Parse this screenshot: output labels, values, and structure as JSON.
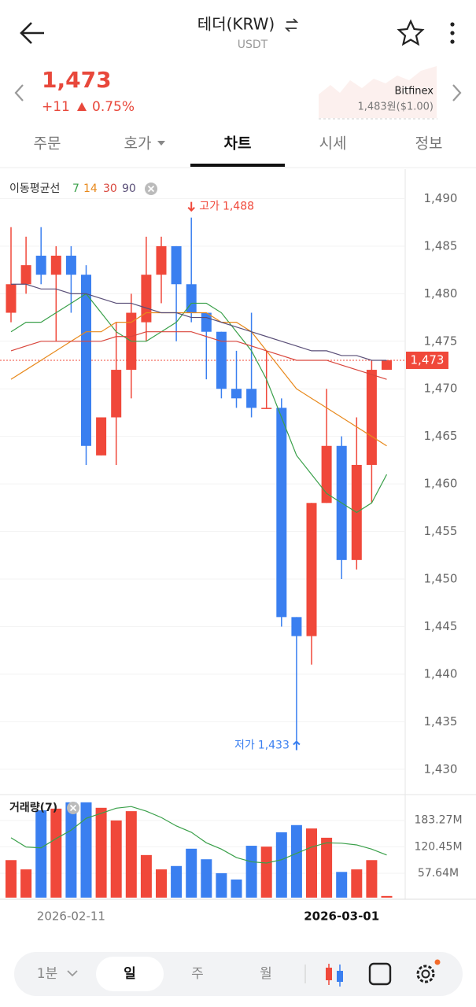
{
  "header": {
    "title": "테더(KRW)",
    "subtitle": "USDT"
  },
  "price": {
    "last": "1,473",
    "change": "+11",
    "change_pct": "0.75%"
  },
  "reference": {
    "exchange": "Bitfinex",
    "price": "1,483원($1.00)"
  },
  "tabs": [
    "주문",
    "호가",
    "차트",
    "시세",
    "정보"
  ],
  "active_tab": 2,
  "chart_data": {
    "type": "candlestick",
    "ma_legend": "이동평균선",
    "categories": [
      null,
      null,
      null,
      null,
      "2026-02-11",
      null,
      null,
      null,
      null,
      null,
      null,
      null,
      null,
      null,
      null,
      null,
      null,
      null,
      null,
      null,
      null,
      null,
      "2026-03-01",
      null,
      null,
      null
    ],
    "open": [
      1478,
      1481,
      1484,
      1482,
      1484,
      1482,
      1463,
      1467,
      1472,
      1477,
      1482,
      1485,
      1481,
      1478,
      1476,
      1470,
      1470,
      1468,
      1468,
      1446,
      1444,
      1458,
      1464,
      1452,
      1462,
      1472
    ],
    "high": [
      1487,
      1486,
      1487,
      1485,
      1485,
      1483,
      1467,
      1477,
      1480,
      1486,
      1486,
      1485,
      1488,
      1478,
      1476,
      1474,
      1478,
      1474,
      1469,
      1446,
      1458,
      1470,
      1465,
      1467,
      1473,
      1473
    ],
    "low": [
      1477,
      1480,
      1481,
      1475,
      1478,
      1462,
      1463,
      1462,
      1469,
      1475,
      1479,
      1475,
      1477,
      1471,
      1469,
      1468,
      1467,
      1468,
      1445,
      1433,
      1441,
      1458,
      1450,
      1451,
      1458,
      1472
    ],
    "close": [
      1481,
      1483,
      1482,
      1484,
      1482,
      1464,
      1467,
      1472,
      1478,
      1482,
      1485,
      1481,
      1478,
      1476,
      1470,
      1469,
      1468,
      1468,
      1446,
      1444,
      1458,
      1464,
      1452,
      1462,
      1472,
      1473
    ],
    "up_color": "#f0483a",
    "down_color": "#3a7ff0",
    "series": [
      {
        "name": "7",
        "color": "#3aa04a",
        "values": [
          1476,
          1477,
          1477,
          1478,
          1479,
          1480,
          1478,
          1476,
          1475,
          1475,
          1476,
          1477,
          1479,
          1479,
          1478,
          1476,
          1474,
          1471,
          1467,
          1463,
          1461,
          1459,
          1458,
          1457,
          1458,
          1461
        ]
      },
      {
        "name": "14",
        "color": "#e8891c",
        "values": [
          1471,
          1472,
          1473,
          1474,
          1475,
          1476,
          1476,
          1477,
          1477,
          1478,
          1478,
          1478,
          1478,
          1478,
          1477,
          1477,
          1476,
          1474,
          1472,
          1470,
          1469,
          1468,
          1467,
          1466,
          1465,
          1464
        ]
      },
      {
        "name": "30",
        "color": "#d9463c",
        "values": [
          1474,
          1474.5,
          1475,
          1475,
          1475,
          1475,
          1475,
          1475.5,
          1475.5,
          1476,
          1476,
          1476,
          1476,
          1475.5,
          1475,
          1475,
          1474.5,
          1474,
          1473.5,
          1473,
          1473,
          1473,
          1472.5,
          1472,
          1471.5,
          1471
        ]
      },
      {
        "name": "90",
        "color": "#5a4f78",
        "values": [
          1481,
          1481,
          1480.5,
          1480.5,
          1480,
          1480,
          1479.5,
          1479,
          1479,
          1478.5,
          1478,
          1478,
          1477.5,
          1477.5,
          1477,
          1476.5,
          1476,
          1475.5,
          1475,
          1474.5,
          1474,
          1474,
          1473.5,
          1473.5,
          1473,
          1473
        ]
      }
    ],
    "ylim": [
      1427.5,
      1493.1
    ],
    "yticks": [
      {
        "value": 1490,
        "label": "1,490"
      },
      {
        "value": 1485,
        "label": "1,485"
      },
      {
        "value": 1480,
        "label": "1,480"
      },
      {
        "value": 1475,
        "label": "1,475"
      },
      {
        "value": 1470,
        "label": "1,470"
      },
      {
        "value": 1465,
        "label": "1,465"
      },
      {
        "value": 1460,
        "label": "1,460"
      },
      {
        "value": 1455,
        "label": "1,455"
      },
      {
        "value": 1450,
        "label": "1,450"
      },
      {
        "value": 1445,
        "label": "1,445"
      },
      {
        "value": 1440,
        "label": "1,440"
      },
      {
        "value": 1435,
        "label": "1,435"
      },
      {
        "value": 1430,
        "label": "1,430"
      }
    ],
    "grid": true,
    "last_price": {
      "value": 1473,
      "label": "1,473"
    },
    "high_mark": {
      "text": "고가",
      "value": 1488,
      "label": "1,488"
    },
    "low_mark": {
      "text": "저가",
      "value": 1433,
      "label": "1,433"
    },
    "volume": {
      "legend": "거래량(7)",
      "values": [
        89,
        67,
        207,
        211,
        226,
        226,
        213,
        183,
        205,
        101,
        67,
        75,
        116,
        91,
        58,
        43,
        123,
        121,
        155,
        172,
        164,
        142,
        61,
        67,
        89,
        4
      ],
      "ma": {
        "color": "#3aa04a",
        "values": [
          142,
          120,
          118,
          140,
          160,
          188,
          200,
          212,
          216,
          205,
          190,
          170,
          155,
          130,
          115,
          95,
          85,
          82,
          90,
          105,
          120,
          130,
          129,
          125,
          115,
          101
        ]
      },
      "ylim": [
        0,
        240.6
      ],
      "yticks": [
        {
          "value": 183.27,
          "label": "183.27M"
        },
        {
          "value": 120.45,
          "label": "120.45M"
        },
        {
          "value": 57.64,
          "label": "57.64M"
        }
      ]
    }
  },
  "toolbar": {
    "interval": "1분",
    "periods": [
      "일",
      "주",
      "월"
    ],
    "active_period": 0
  }
}
